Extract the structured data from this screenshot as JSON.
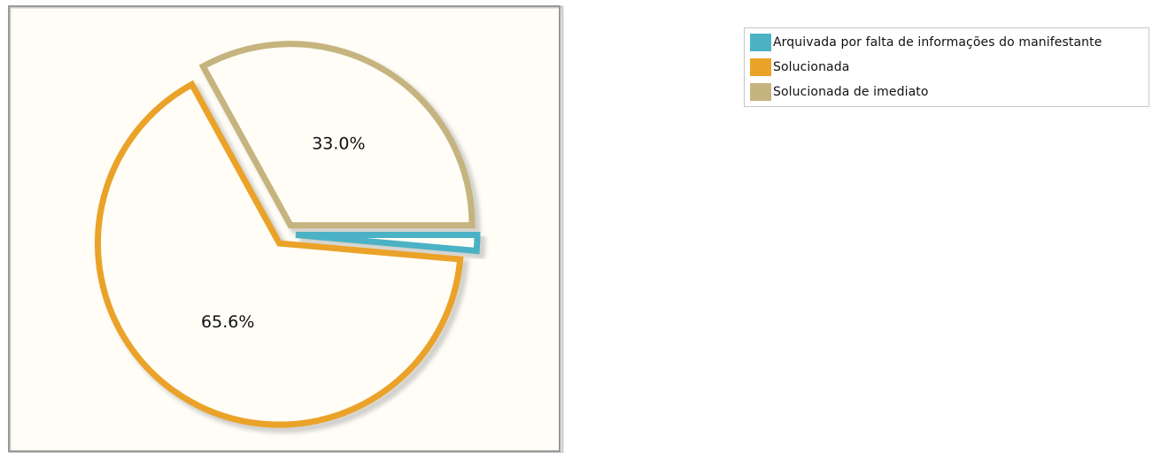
{
  "chart_data": {
    "type": "pie",
    "slices": [
      {
        "label": "Arquivada por falta de informações do manifestante",
        "value": 1.4,
        "color": "#4bb2c5"
      },
      {
        "label": "Solucionada",
        "value": 65.6,
        "color": "#eaa228"
      },
      {
        "label": "Solucionada de imediato",
        "value": 33.0,
        "color": "#c5b47f"
      }
    ],
    "data_labels": [
      "",
      "65.6%",
      "33.0%"
    ],
    "legend_position": "right",
    "background_color": "#fffdf6",
    "border_color": "#999999"
  }
}
